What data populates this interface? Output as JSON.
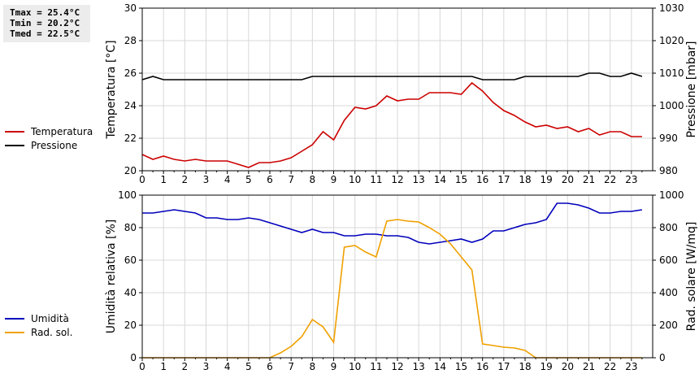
{
  "stats": {
    "tmax": "Tmax = 25.4°C",
    "tmin": "Tmin = 20.2°C",
    "tmed": "Tmed = 22.5°C"
  },
  "legend_top": [
    {
      "label": "Temperatura",
      "color": "#cc0000"
    },
    {
      "label": "Pressione",
      "color": "#000000"
    }
  ],
  "legend_bottom": [
    {
      "label": "Umidità",
      "color": "#0000bb"
    },
    {
      "label": "Rad. sol.",
      "color": "#f0a000"
    }
  ],
  "chart_data": [
    {
      "type": "line",
      "x": [
        0,
        0.5,
        1,
        1.5,
        2,
        2.5,
        3,
        3.5,
        4,
        4.5,
        5,
        5.5,
        6,
        6.5,
        7,
        7.5,
        8,
        8.5,
        9,
        9.5,
        10,
        10.5,
        11,
        11.5,
        12,
        12.5,
        13,
        13.5,
        14,
        14.5,
        15,
        15.5,
        16,
        16.5,
        17,
        17.5,
        18,
        18.5,
        19,
        19.5,
        20,
        20.5,
        21,
        21.5,
        22,
        22.5,
        23,
        23.5
      ],
      "xticks": [
        "0",
        "1",
        "2",
        "3",
        "4",
        "5",
        "6",
        "7",
        "8",
        "9",
        "10",
        "11",
        "12",
        "13",
        "14",
        "15",
        "16",
        "17",
        "18",
        "19",
        "20",
        "21",
        "22",
        "23"
      ],
      "xlim": [
        0,
        24
      ],
      "ylabel": "Temperatura [°C]",
      "ylim": [
        20,
        30
      ],
      "yticks": [
        "20",
        "22",
        "24",
        "26",
        "28",
        "30"
      ],
      "ylabel2": "Pressione [mbar]",
      "ylim2": [
        980,
        1030
      ],
      "yticks2": [
        "980",
        "990",
        "1000",
        "1010",
        "1020",
        "1030"
      ],
      "grid": true,
      "series": [
        {
          "name": "Temperatura",
          "axis": "left",
          "color": "#cc0000",
          "values": [
            21.0,
            20.7,
            20.9,
            20.7,
            20.6,
            20.7,
            20.6,
            20.6,
            20.6,
            20.4,
            20.2,
            20.5,
            20.5,
            20.6,
            20.8,
            21.2,
            21.6,
            22.4,
            21.9,
            23.1,
            23.9,
            23.8,
            24.0,
            24.6,
            24.3,
            24.4,
            24.4,
            24.8,
            24.8,
            24.8,
            24.7,
            25.4,
            24.9,
            24.2,
            23.7,
            23.4,
            23.0,
            22.7,
            22.8,
            22.6,
            22.7,
            22.4,
            22.6,
            22.2,
            22.4,
            22.4,
            22.1,
            22.1
          ]
        },
        {
          "name": "Pressione",
          "axis": "right",
          "color": "#000000",
          "values": [
            1008,
            1009,
            1008,
            1008,
            1008,
            1008,
            1008,
            1008,
            1008,
            1008,
            1008,
            1008,
            1008,
            1008,
            1008,
            1008,
            1009,
            1009,
            1009,
            1009,
            1009,
            1009,
            1009,
            1009,
            1009,
            1009,
            1009,
            1009,
            1009,
            1009,
            1009,
            1009,
            1008,
            1008,
            1008,
            1008,
            1009,
            1009,
            1009,
            1009,
            1009,
            1009,
            1010,
            1010,
            1009,
            1009,
            1010,
            1009
          ]
        }
      ]
    },
    {
      "type": "line",
      "x": [
        0,
        0.5,
        1,
        1.5,
        2,
        2.5,
        3,
        3.5,
        4,
        4.5,
        5,
        5.5,
        6,
        6.5,
        7,
        7.5,
        8,
        8.5,
        9,
        9.5,
        10,
        10.5,
        11,
        11.5,
        12,
        12.5,
        13,
        13.5,
        14,
        14.5,
        15,
        15.5,
        16,
        16.5,
        17,
        17.5,
        18,
        18.5,
        19,
        19.5,
        20,
        20.5,
        21,
        21.5,
        22,
        22.5,
        23,
        23.5
      ],
      "xticks": [
        "0",
        "1",
        "2",
        "3",
        "4",
        "5",
        "6",
        "7",
        "8",
        "9",
        "10",
        "11",
        "12",
        "13",
        "14",
        "15",
        "16",
        "17",
        "18",
        "19",
        "20",
        "21",
        "22",
        "23"
      ],
      "xlim": [
        0,
        24
      ],
      "ylabel": "Umidità relativa [%]",
      "ylim": [
        0,
        100
      ],
      "yticks": [
        "0",
        "20",
        "40",
        "60",
        "80",
        "100"
      ],
      "ylabel2": "Rad. solare [W/mq]",
      "ylim2": [
        0,
        1000
      ],
      "yticks2": [
        "0",
        "200",
        "400",
        "600",
        "800",
        "1000"
      ],
      "grid": true,
      "series": [
        {
          "name": "Umidità",
          "axis": "left",
          "color": "#0000bb",
          "values": [
            89,
            89,
            90,
            91,
            90,
            89,
            86,
            86,
            85,
            85,
            86,
            85,
            83,
            81,
            79,
            77,
            79,
            77,
            77,
            75,
            75,
            76,
            76,
            75,
            75,
            74,
            71,
            70,
            71,
            72,
            73,
            71,
            73,
            78,
            78,
            80,
            82,
            83,
            85,
            95,
            95,
            94,
            92,
            89,
            89,
            90,
            90,
            91
          ]
        },
        {
          "name": "Rad. sol.",
          "axis": "right",
          "color": "#f0a000",
          "values": [
            0,
            0,
            0,
            0,
            0,
            0,
            0,
            0,
            0,
            0,
            0,
            0,
            0,
            30,
            70,
            130,
            235,
            190,
            95,
            680,
            690,
            650,
            620,
            840,
            850,
            840,
            835,
            800,
            760,
            700,
            620,
            540,
            85,
            75,
            65,
            60,
            45,
            0,
            0,
            0,
            0,
            0,
            0,
            0,
            0,
            0,
            0,
            0
          ]
        }
      ]
    }
  ]
}
